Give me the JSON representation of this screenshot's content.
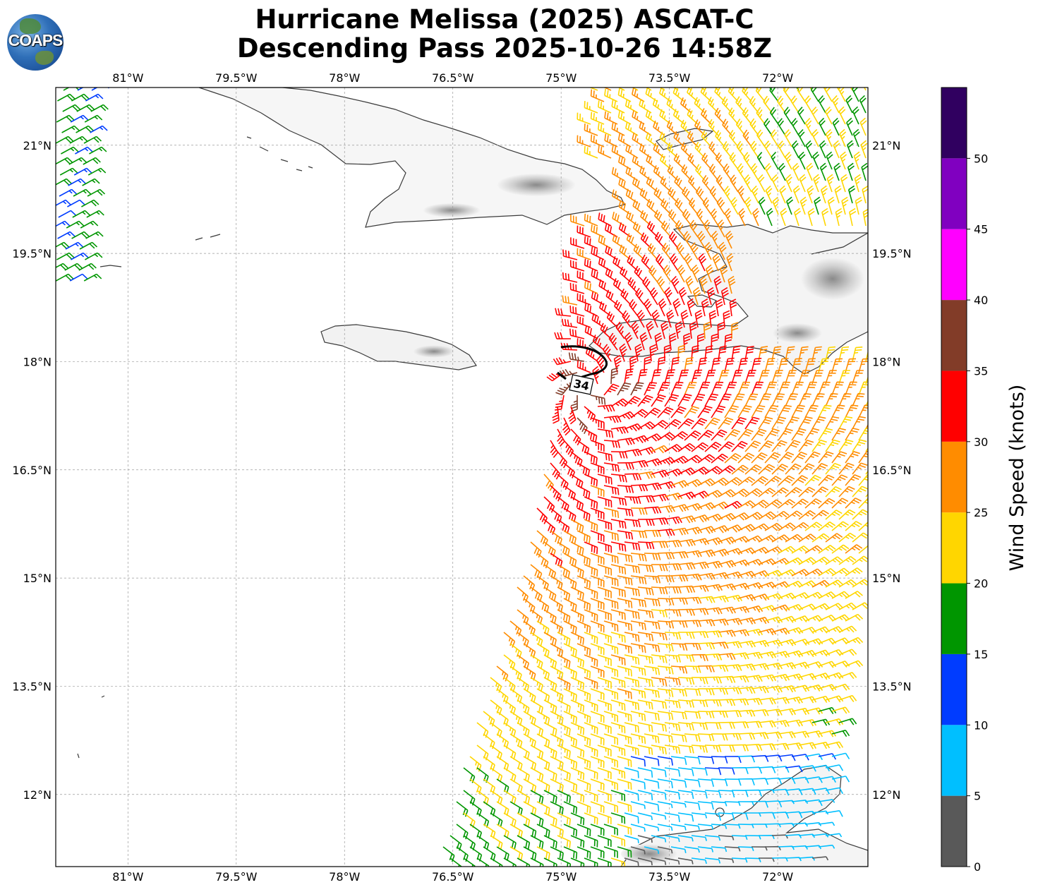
{
  "header": {
    "title_line1": "Hurricane Melissa (2025) ASCAT-C",
    "title_line2": "Descending Pass 2025-10-26 14:58Z",
    "logo_text": "COAPS"
  },
  "map": {
    "lon_range": [
      -82.0,
      -70.75
    ],
    "lat_range": [
      11.0,
      21.8
    ],
    "lon_ticks": [
      {
        "value": -81.0,
        "label": "81°W"
      },
      {
        "value": -79.5,
        "label": "79.5°W"
      },
      {
        "value": -78.0,
        "label": "78°W"
      },
      {
        "value": -76.5,
        "label": "76.5°W"
      },
      {
        "value": -75.0,
        "label": "75°W"
      },
      {
        "value": -73.5,
        "label": "73.5°W"
      },
      {
        "value": -72.0,
        "label": "72°W"
      }
    ],
    "lat_ticks": [
      {
        "value": 21.0,
        "label": "21°N"
      },
      {
        "value": 19.5,
        "label": "19.5°N"
      },
      {
        "value": 18.0,
        "label": "18°N"
      },
      {
        "value": 16.5,
        "label": "16.5°N"
      },
      {
        "value": 15.0,
        "label": "15°N"
      },
      {
        "value": 13.5,
        "label": "13.5°N"
      },
      {
        "value": 12.0,
        "label": "12°N"
      }
    ],
    "gridlines": true,
    "contour_label": "34"
  },
  "colorbar": {
    "label": "Wind Speed (knots)",
    "bins": [
      {
        "from": 0,
        "to": 5,
        "color": "#595959"
      },
      {
        "from": 5,
        "to": 10,
        "color": "#00bfff"
      },
      {
        "from": 10,
        "to": 15,
        "color": "#003cff"
      },
      {
        "from": 15,
        "to": 20,
        "color": "#009600"
      },
      {
        "from": 20,
        "to": 25,
        "color": "#ffd600"
      },
      {
        "from": 25,
        "to": 30,
        "color": "#ff8c00"
      },
      {
        "from": 30,
        "to": 35,
        "color": "#ff0000"
      },
      {
        "from": 35,
        "to": 40,
        "color": "#823c28"
      },
      {
        "from": 40,
        "to": 45,
        "color": "#ff00ff"
      },
      {
        "from": 45,
        "to": 50,
        "color": "#8000c0"
      },
      {
        "from": 50,
        "to": 55,
        "color": "#300060"
      }
    ],
    "tick_labels": [
      "0",
      "5",
      "10",
      "15",
      "20",
      "25",
      "30",
      "35",
      "40",
      "45",
      "50"
    ]
  },
  "wind_field": {
    "center_lon": -74.6,
    "center_lat": 17.6,
    "swath": "ASCAT-C descending",
    "left_strip_speed_range": [
      12,
      20
    ]
  }
}
